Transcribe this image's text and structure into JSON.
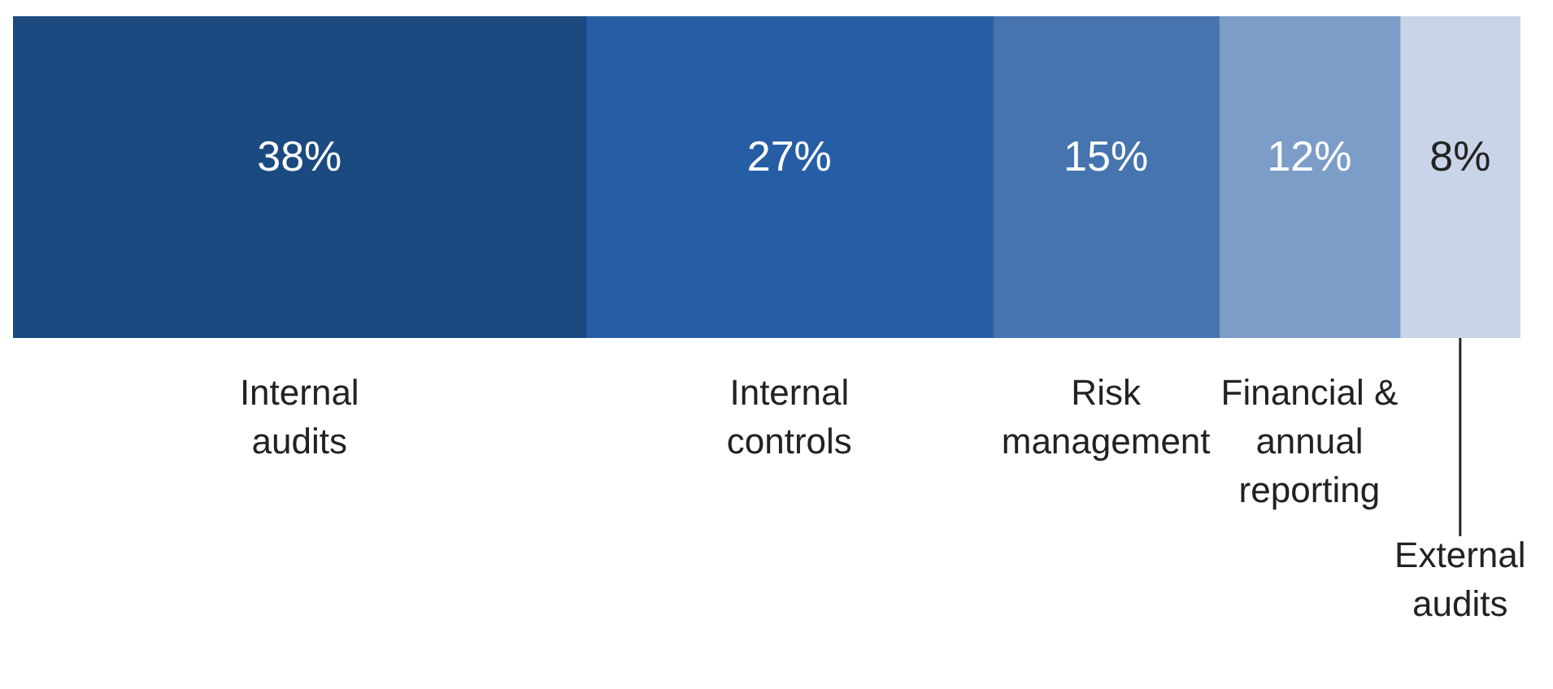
{
  "chart_data": {
    "type": "bar",
    "orientation": "horizontal",
    "stacked": true,
    "categories": [
      null
    ],
    "series": [
      {
        "name": "Internal audits",
        "color": "#1b4a80",
        "values": [
          38
        ],
        "value_labels": [
          "38%"
        ]
      },
      {
        "name": "Internal controls",
        "color": "#265ea5",
        "values": [
          27
        ],
        "value_labels": [
          "27%"
        ]
      },
      {
        "name": "Risk management",
        "color": "#4574ae",
        "values": [
          15
        ],
        "value_labels": [
          "15%"
        ]
      },
      {
        "name": "Financial & annual reporting",
        "color": "#7b9dc8",
        "values": [
          12
        ],
        "value_labels": [
          "12%"
        ]
      },
      {
        "name": "External audits",
        "color": "#c9d4e8",
        "values": [
          8
        ],
        "value_labels": [
          "8%"
        ]
      }
    ]
  }
}
